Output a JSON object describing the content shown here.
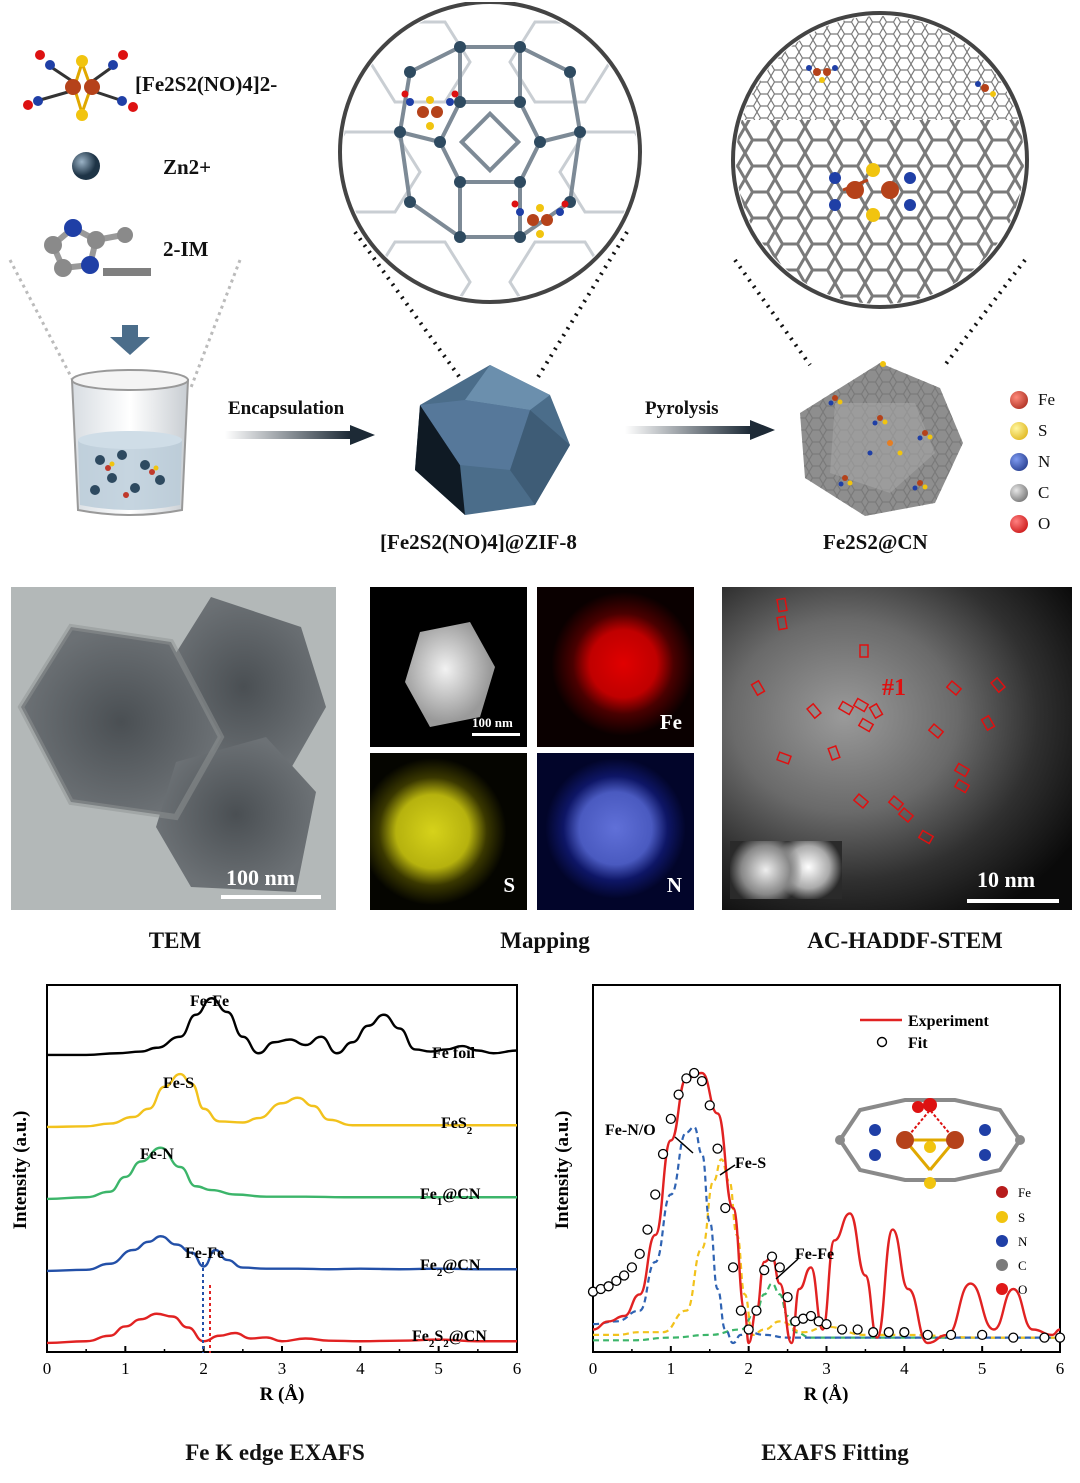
{
  "scheme": {
    "precursor": "[Fe2S2(NO)4]2-",
    "zinc": "Zn2+",
    "imidazole": "2-IM",
    "step1": "Encapsulation",
    "step2": "Pyrolysis",
    "product1": "[Fe2S2(NO)4]@ZIF-8",
    "product2": "Fe2S2@CN",
    "legend": [
      {
        "symbol": "Fe",
        "color": "#c0392b"
      },
      {
        "symbol": "S",
        "color": "#f1c40f"
      },
      {
        "symbol": "N",
        "color": "#1f3fa6"
      },
      {
        "symbol": "C",
        "color": "#8a8a8a"
      },
      {
        "symbol": "O",
        "color": "#e01919"
      }
    ]
  },
  "micro": {
    "tem_scale": "100 nm",
    "tem_caption": "TEM",
    "map_scale": "100 nm",
    "map_fe": "Fe",
    "map_s": "S",
    "map_n": "N",
    "map_caption": "Mapping",
    "stem_marker": "#1",
    "stem_scale": "10 nm",
    "stem_caption": "AC-HADDF-STEM"
  },
  "chart_data": [
    {
      "type": "line",
      "title": "Fe K edge EXAFS",
      "xlabel": "R (Å)",
      "ylabel": "Intensity (a.u.)",
      "xlim": [
        0,
        6
      ],
      "xticks": [
        0,
        1,
        2,
        3,
        4,
        5,
        6
      ],
      "series": [
        {
          "name": "Fe foil",
          "color": "#000000",
          "offset": 4.0,
          "x": [
            0,
            0.5,
            0.9,
            1.2,
            1.4,
            1.7,
            1.9,
            2.1,
            2.3,
            2.5,
            2.7,
            2.9,
            3.1,
            3.3,
            3.5,
            3.7,
            3.9,
            4.1,
            4.3,
            4.5,
            4.7,
            4.9,
            5.1,
            5.3,
            5.5,
            5.7,
            6.0
          ],
          "y": [
            0.02,
            0.02,
            0.05,
            0.08,
            0.15,
            0.35,
            0.75,
            1.05,
            0.8,
            0.35,
            0.05,
            0.25,
            0.3,
            0.2,
            0.35,
            0.05,
            0.25,
            0.55,
            0.75,
            0.5,
            0.12,
            0.08,
            0.12,
            0.18,
            0.1,
            0.05,
            0.1
          ]
        },
        {
          "name": "FeS2",
          "color": "#f2c21c",
          "offset": 3.0,
          "x": [
            0,
            0.5,
            0.8,
            1.1,
            1.3,
            1.5,
            1.7,
            1.85,
            2.0,
            2.2,
            2.5,
            2.7,
            3.0,
            3.2,
            3.4,
            3.6,
            3.9,
            4.2,
            4.5,
            5.0,
            5.5,
            6.0
          ],
          "y": [
            0.02,
            0.03,
            0.08,
            0.2,
            0.35,
            0.75,
            0.98,
            0.8,
            0.35,
            0.12,
            0.1,
            0.18,
            0.45,
            0.55,
            0.4,
            0.15,
            0.05,
            0.05,
            0.05,
            0.05,
            0.05,
            0.05
          ]
        },
        {
          "name": "Fe1@CN",
          "color": "#3cb56a",
          "offset": 2.0,
          "x": [
            0,
            0.5,
            0.8,
            1.0,
            1.2,
            1.45,
            1.7,
            1.9,
            2.1,
            2.4,
            2.8,
            3.3,
            3.8,
            4.3,
            4.8,
            5.3,
            6.0
          ],
          "y": [
            0.02,
            0.05,
            0.15,
            0.42,
            0.7,
            0.95,
            0.6,
            0.25,
            0.18,
            0.1,
            0.06,
            0.06,
            0.05,
            0.05,
            0.05,
            0.05,
            0.05
          ]
        },
        {
          "name": "Fe2@CN",
          "color": "#2350a8",
          "offset": 1.0,
          "x": [
            0,
            0.5,
            0.8,
            1.1,
            1.3,
            1.45,
            1.65,
            1.85,
            2.0,
            2.15,
            2.3,
            2.5,
            2.8,
            3.2,
            3.6,
            4.0,
            4.5,
            5.0,
            5.5,
            6.0
          ],
          "y": [
            0.02,
            0.04,
            0.15,
            0.4,
            0.55,
            0.65,
            0.5,
            0.35,
            0.1,
            0.4,
            0.22,
            0.08,
            0.06,
            0.06,
            0.05,
            0.06,
            0.05,
            0.06,
            0.05,
            0.05
          ]
        },
        {
          "name": "Fe2S2@CN",
          "color": "#e12222",
          "offset": 0.0,
          "x": [
            0,
            0.5,
            0.8,
            1.0,
            1.2,
            1.4,
            1.6,
            1.8,
            2.0,
            2.2,
            2.4,
            2.6,
            2.8,
            3.0,
            3.3,
            3.6,
            4.0,
            4.5,
            5.0,
            5.5,
            6.0
          ],
          "y": [
            0.02,
            0.05,
            0.15,
            0.32,
            0.45,
            0.55,
            0.5,
            0.3,
            0.05,
            0.15,
            0.2,
            0.1,
            0.12,
            0.05,
            0.1,
            0.06,
            0.05,
            0.06,
            0.08,
            0.05,
            0.05
          ]
        }
      ],
      "annotations": [
        "Fe-Fe",
        "Fe-S",
        "Fe-N",
        "Fe-Fe"
      ]
    },
    {
      "type": "line",
      "title": "EXAFS Fitting",
      "xlabel": "R (Å)",
      "ylabel": "Intensity (a.u.)",
      "xlim": [
        0,
        6
      ],
      "xticks": [
        0,
        1,
        2,
        3,
        4,
        5,
        6
      ],
      "legend": [
        "Experiment",
        "Fit"
      ],
      "series": [
        {
          "name": "Experiment",
          "style": "solid",
          "color": "#e12222",
          "x": [
            0,
            0.2,
            0.4,
            0.6,
            0.8,
            1.0,
            1.2,
            1.4,
            1.6,
            1.8,
            1.95,
            2.0,
            2.1,
            2.2,
            2.3,
            2.4,
            2.55,
            2.65,
            2.8,
            2.95,
            3.1,
            3.3,
            3.5,
            3.65,
            3.85,
            4.05,
            4.3,
            4.55,
            4.85,
            5.15,
            5.4,
            5.65,
            5.9,
            6.0
          ],
          "y": [
            0.05,
            0.08,
            0.1,
            0.18,
            0.4,
            0.75,
            0.98,
            1.0,
            0.85,
            0.5,
            0.12,
            0.0,
            0.12,
            0.3,
            0.32,
            0.22,
            0.0,
            0.2,
            0.28,
            0.05,
            0.38,
            0.48,
            0.25,
            0.02,
            0.42,
            0.2,
            0.0,
            0.03,
            0.22,
            0.05,
            0.2,
            0.05,
            0.03,
            0.05
          ]
        },
        {
          "name": "Fit",
          "style": "circles",
          "color": "#000000",
          "x": [
            0,
            0.1,
            0.2,
            0.3,
            0.4,
            0.5,
            0.6,
            0.7,
            0.8,
            0.9,
            1.0,
            1.1,
            1.2,
            1.3,
            1.4,
            1.5,
            1.6,
            1.7,
            1.8,
            1.9,
            2.0,
            2.1,
            2.2,
            2.3,
            2.4,
            2.5,
            2.6,
            2.7,
            2.8,
            2.9,
            3.0,
            3.2,
            3.4,
            3.6,
            3.8,
            4.0,
            4.3,
            4.6,
            5.0,
            5.4,
            5.8,
            6.0
          ],
          "y": [
            0.19,
            0.2,
            0.21,
            0.23,
            0.25,
            0.28,
            0.33,
            0.42,
            0.55,
            0.7,
            0.83,
            0.92,
            0.98,
            1.0,
            0.97,
            0.88,
            0.72,
            0.5,
            0.28,
            0.12,
            0.05,
            0.12,
            0.27,
            0.32,
            0.28,
            0.17,
            0.08,
            0.09,
            0.1,
            0.08,
            0.07,
            0.05,
            0.05,
            0.04,
            0.04,
            0.04,
            0.03,
            0.03,
            0.03,
            0.02,
            0.02,
            0.02
          ]
        },
        {
          "name": "Fe-N/O",
          "style": "dashed",
          "color": "#2f63b3",
          "x": [
            0,
            0.3,
            0.6,
            0.8,
            1.0,
            1.2,
            1.3,
            1.4,
            1.5,
            1.6,
            1.7,
            1.8,
            1.9,
            2.0,
            2.2,
            2.5,
            3.0,
            4.0,
            5.0,
            6.0
          ],
          "y": [
            0.07,
            0.08,
            0.12,
            0.3,
            0.55,
            0.78,
            0.8,
            0.7,
            0.45,
            0.2,
            0.05,
            0.0,
            0.03,
            0.04,
            0.03,
            0.02,
            0.02,
            0.02,
            0.02,
            0.02
          ]
        },
        {
          "name": "Fe-S",
          "style": "dashed",
          "color": "#f2c21c",
          "x": [
            0,
            0.3,
            0.6,
            0.9,
            1.2,
            1.4,
            1.55,
            1.65,
            1.75,
            1.85,
            1.95,
            2.05,
            2.2,
            2.4,
            2.7,
            3.0,
            3.5,
            4.0,
            5.0,
            6.0
          ],
          "y": [
            0.03,
            0.03,
            0.04,
            0.04,
            0.12,
            0.35,
            0.6,
            0.68,
            0.6,
            0.4,
            0.18,
            0.03,
            0.05,
            0.08,
            0.04,
            0.06,
            0.03,
            0.03,
            0.02,
            0.02
          ]
        },
        {
          "name": "Fe-Fe",
          "style": "dashed",
          "color": "#3cb56a",
          "x": [
            0,
            0.5,
            1.0,
            1.5,
            1.9,
            2.1,
            2.2,
            2.3,
            2.4,
            2.5,
            2.6,
            2.8,
            3.0,
            3.5,
            4.0,
            5.0,
            6.0
          ],
          "y": [
            0.01,
            0.01,
            0.02,
            0.03,
            0.05,
            0.12,
            0.18,
            0.22,
            0.18,
            0.1,
            0.04,
            0.02,
            0.02,
            0.02,
            0.02,
            0.02,
            0.02
          ]
        }
      ],
      "annotations": [
        "Fe-N/O",
        "Fe-S",
        "Fe-Fe"
      ],
      "inset_legend": [
        "Fe",
        "S",
        "N",
        "C",
        "O"
      ]
    }
  ]
}
